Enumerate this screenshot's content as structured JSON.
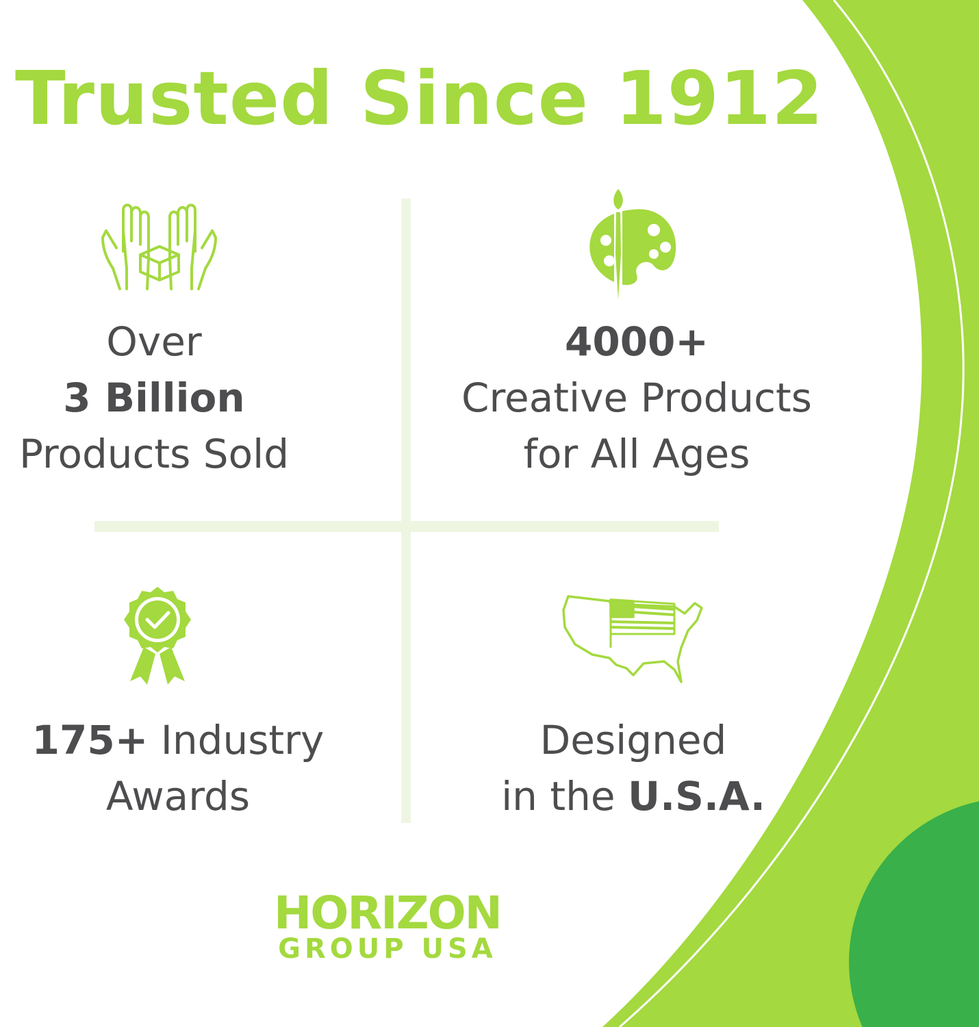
{
  "title": "Trusted Since 1912",
  "colors": {
    "accent_green": "#a4d93f",
    "dark_green": "#39b04a",
    "text": "#4d4d4f",
    "divider": "#eef6e2"
  },
  "stats": [
    {
      "icon": "hands-holding-box-icon",
      "line1": "Over",
      "line2_bold": "3 Billion",
      "line3": "Products Sold"
    },
    {
      "icon": "paint-palette-icon",
      "line1_bold": "4000+",
      "line2": "Creative Products",
      "line3": "for All Ages"
    },
    {
      "icon": "award-ribbon-icon",
      "line1_bold": "175+",
      "line1_rest": " Industry",
      "line2": "Awards"
    },
    {
      "icon": "usa-map-flag-icon",
      "line1": "Designed",
      "line2": "in the ",
      "line2_bold": "U.S.A."
    }
  ],
  "logo": {
    "line1": "HORIZON",
    "line2": "GROUP USA"
  }
}
